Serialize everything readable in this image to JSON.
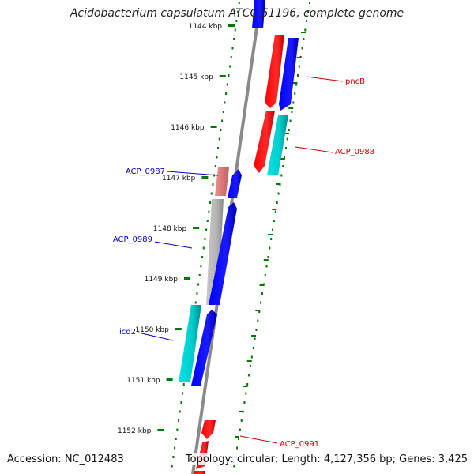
{
  "title": "Acidobacterium capsulatum ATCC 51196, complete genome",
  "accession": "Accession: NC_012483",
  "summary": "Topology: circular; Length: 4,127,356 bp; Genes: 3,425",
  "ticks": [
    "1144 kbp",
    "1145 kbp",
    "1146 kbp",
    "1147 kbp",
    "1148 kbp",
    "1149 kbp",
    "1150 kbp",
    "1151 kbp",
    "1152 kbp"
  ],
  "gene_labels": {
    "left": [
      "ACP_0987",
      "ACP_0989",
      "icd2"
    ],
    "right": [
      "pncB",
      "ACP_0988",
      "ACP_0991"
    ]
  },
  "colors": {
    "forward_gene": "#ff0000",
    "forward_gene_light": "#e88080",
    "reverse_gene": "#0000ff",
    "rna": "#00cccc",
    "pseudo": "#b0b0b0",
    "label_left": "#0000cc",
    "label_right": "#cc0000",
    "tick": "#007700",
    "backbone": "#888888"
  }
}
